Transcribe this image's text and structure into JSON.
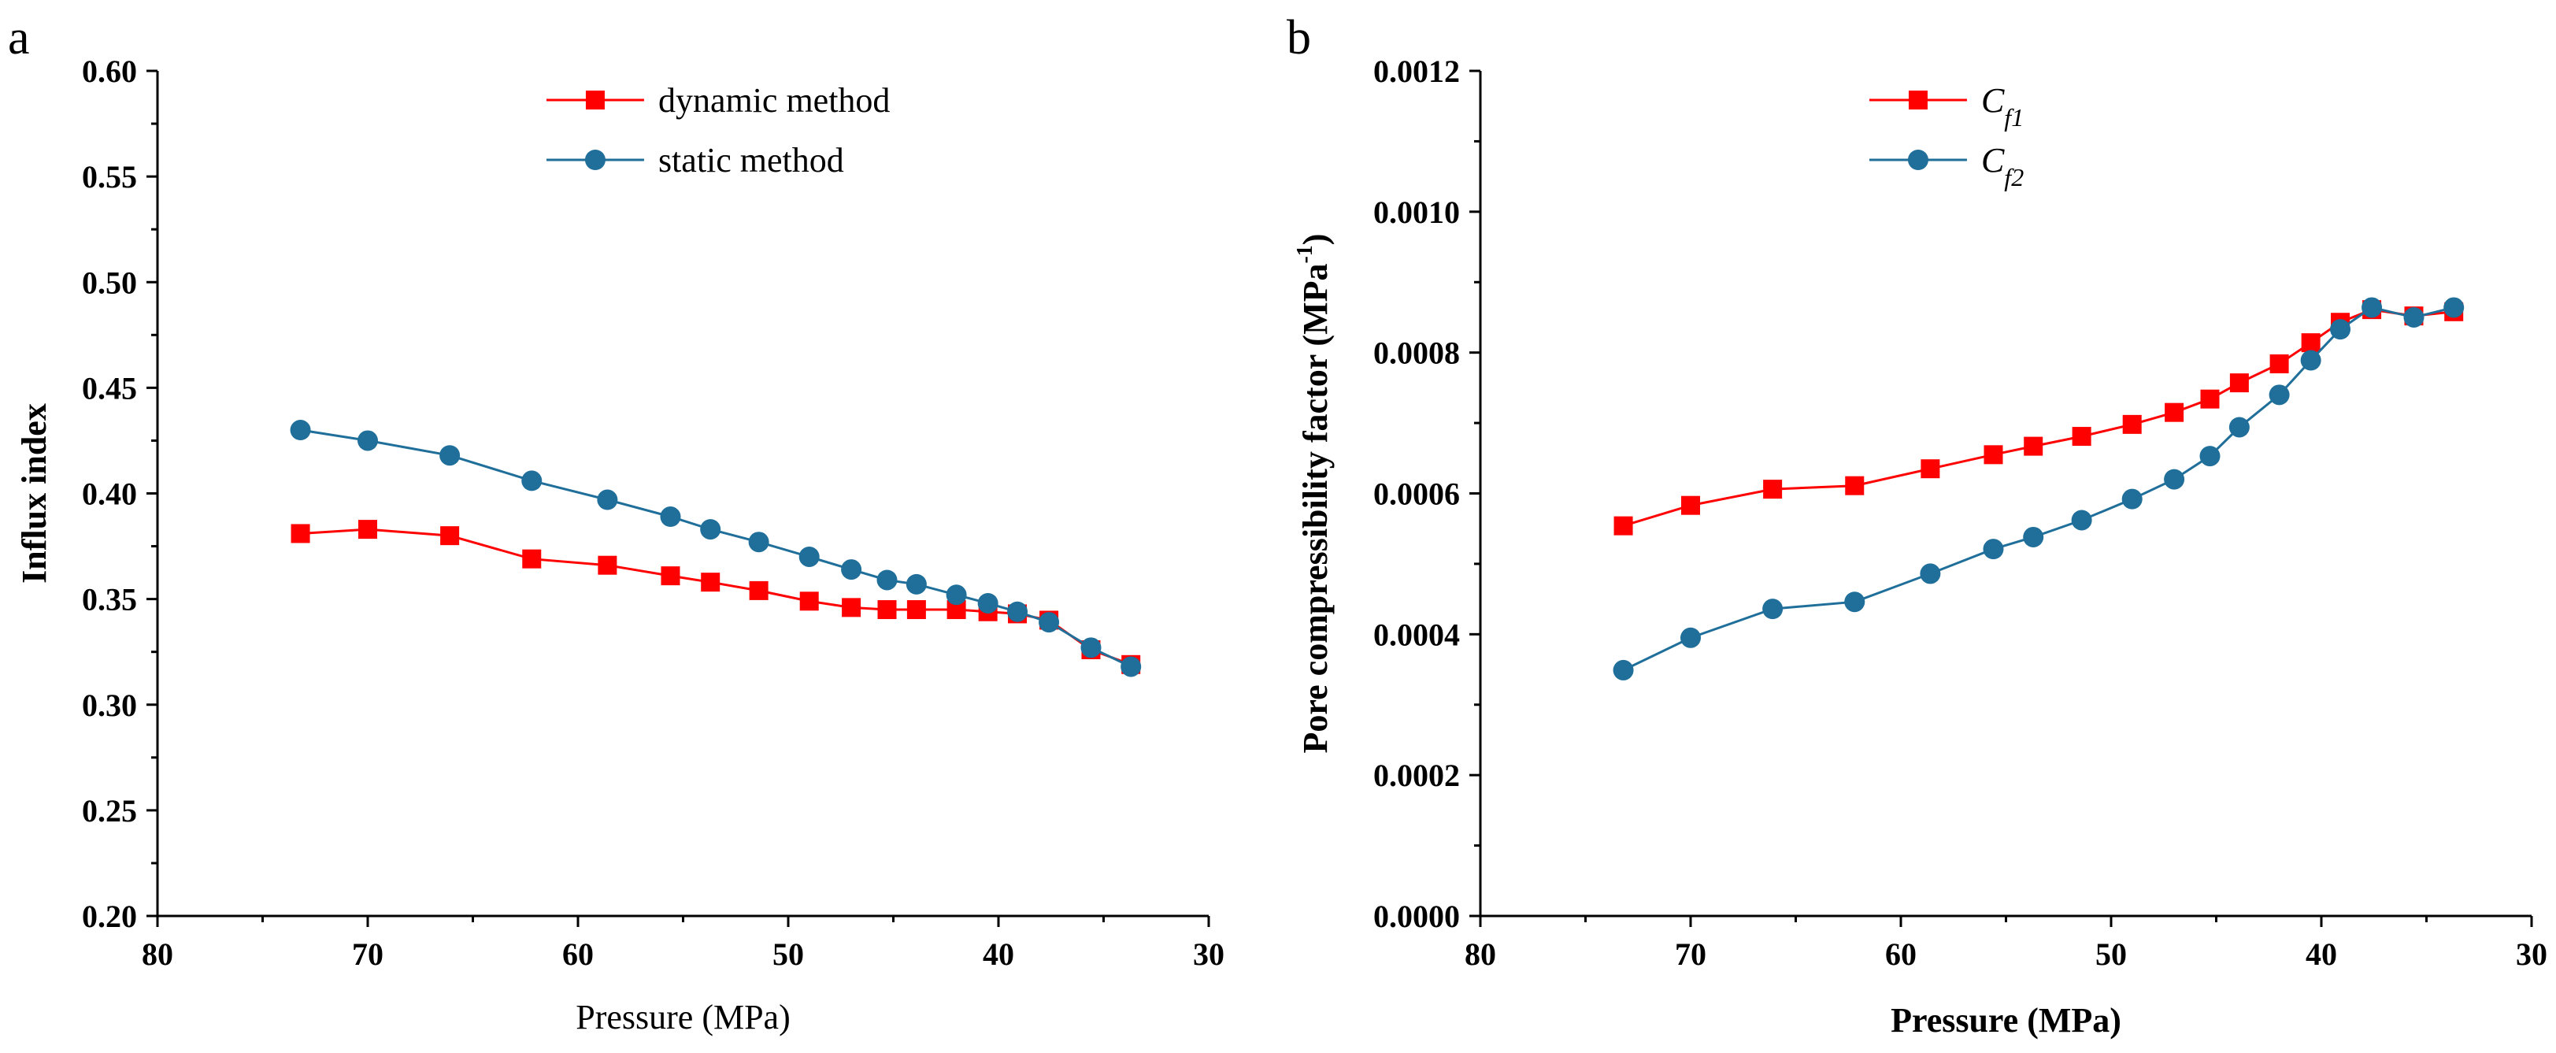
{
  "chart_data": [
    {
      "panel": "a",
      "type": "line",
      "title": "",
      "xlabel": "Pressure (MPa)",
      "ylabel": "Influx index",
      "xlim": [
        80,
        30
      ],
      "ylim": [
        0.2,
        0.6
      ],
      "xticks": [
        "80",
        "70",
        "60",
        "50",
        "40",
        "30"
      ],
      "yticks": [
        "0.20",
        "0.25",
        "0.30",
        "0.35",
        "0.40",
        "0.45",
        "0.50",
        "0.55",
        "0.60"
      ],
      "grid": false,
      "legend_position": "top-center",
      "series": [
        {
          "name": "dynamic method",
          "color": "#ff0000",
          "marker": "square",
          "x": [
            73.2,
            70.0,
            66.1,
            62.2,
            58.6,
            55.6,
            53.7,
            51.4,
            49.0,
            47.0,
            45.3,
            43.9,
            42.0,
            40.5,
            39.1,
            37.6,
            35.6,
            33.7
          ],
          "y": [
            0.381,
            0.383,
            0.38,
            0.369,
            0.366,
            0.361,
            0.358,
            0.354,
            0.349,
            0.346,
            0.345,
            0.345,
            0.345,
            0.344,
            0.343,
            0.34,
            0.326,
            0.319
          ]
        },
        {
          "name": "static method",
          "color": "#1f6f9a",
          "marker": "circle",
          "x": [
            73.2,
            70.0,
            66.1,
            62.2,
            58.6,
            55.6,
            53.7,
            51.4,
            49.0,
            47.0,
            45.3,
            43.9,
            42.0,
            40.5,
            39.1,
            37.6,
            35.6,
            33.7
          ],
          "y": [
            0.43,
            0.425,
            0.418,
            0.406,
            0.397,
            0.389,
            0.383,
            0.377,
            0.37,
            0.364,
            0.359,
            0.357,
            0.352,
            0.348,
            0.344,
            0.339,
            0.327,
            0.318
          ]
        }
      ]
    },
    {
      "panel": "b",
      "type": "line",
      "title": "",
      "xlabel": "Pressure (MPa)",
      "ylabel": "Pore  compressibility factor (MPa",
      "ylabel_sup": "-1",
      "ylabel_end": ")",
      "xlim": [
        80,
        30
      ],
      "ylim": [
        0,
        0.0012
      ],
      "xticks": [
        "80",
        "70",
        "60",
        "50",
        "40",
        "30"
      ],
      "yticks": [
        "0.0000",
        "0.0002",
        "0.0004",
        "0.0006",
        "0.0008",
        "0.0010",
        "0.0012"
      ],
      "grid": false,
      "legend_position": "top-center",
      "series": [
        {
          "name": "C",
          "subscript": "f1",
          "color": "#ff0000",
          "marker": "square",
          "x": [
            73.2,
            70.0,
            66.1,
            62.2,
            58.6,
            55.6,
            53.7,
            51.4,
            49.0,
            47.0,
            45.3,
            43.9,
            42.0,
            40.5,
            39.1,
            37.6,
            35.6,
            33.7
          ],
          "y": [
            0.000554,
            0.000583,
            0.000606,
            0.000611,
            0.000635,
            0.000655,
            0.000667,
            0.000681,
            0.000698,
            0.000715,
            0.000734,
            0.000757,
            0.000784,
            0.000814,
            0.000843,
            0.000861,
            0.000852,
            0.000858
          ]
        },
        {
          "name": "C",
          "subscript": "f2",
          "color": "#1f6f9a",
          "marker": "circle",
          "x": [
            73.2,
            70.0,
            66.1,
            62.2,
            58.6,
            55.6,
            53.7,
            51.4,
            49.0,
            47.0,
            45.3,
            43.9,
            42.0,
            40.5,
            39.1,
            37.6,
            35.6,
            33.7
          ],
          "y": [
            0.000349,
            0.000395,
            0.000436,
            0.000446,
            0.000486,
            0.000521,
            0.000538,
            0.000562,
            0.000592,
            0.00062,
            0.000653,
            0.000694,
            0.00074,
            0.000789,
            0.000833,
            0.000864,
            0.00085,
            0.000864
          ]
        }
      ]
    }
  ]
}
